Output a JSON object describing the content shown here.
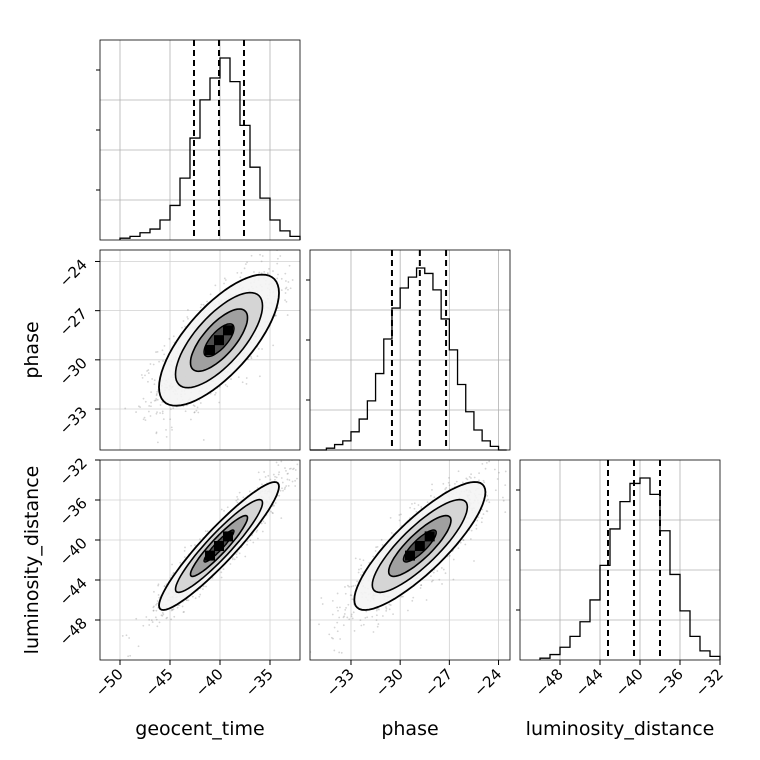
{
  "chart_data": {
    "type": "corner",
    "parameters": [
      "geocent_time",
      "phase",
      "luminosity_distance"
    ],
    "ranges": {
      "geocent_time": [
        -52,
        -32
      ],
      "phase": [
        -35.5,
        -23.3
      ],
      "luminosity_distance": [
        -52,
        -32
      ]
    },
    "ticks": {
      "geocent_time": [
        -50,
        -45,
        -40,
        -35
      ],
      "phase": [
        -33,
        -30,
        -27,
        -24
      ],
      "luminosity_distance": [
        -48,
        -44,
        -40,
        -36,
        -32
      ]
    },
    "tick_labels": {
      "geocent_time": [
        "−50",
        "−45",
        "−40",
        "−35"
      ],
      "phase": [
        "−33",
        "−30",
        "−27",
        "−24"
      ],
      "luminosity_distance": [
        "−48",
        "−44",
        "−40",
        "−36",
        "−32"
      ]
    },
    "quantiles": {
      "geocent_time": [
        -42.6,
        -40.1,
        -37.6
      ],
      "phase": [
        -30.5,
        -28.8,
        -27.2
      ],
      "luminosity_distance": [
        -43.2,
        -40.6,
        -38.0
      ]
    },
    "histograms": [
      {
        "parameter": "geocent_time",
        "edges": [
          -50,
          -49,
          -48,
          -47,
          -46,
          -45,
          -44,
          -43,
          -42,
          -41,
          -40,
          -39,
          -38,
          -37,
          -36,
          -35,
          -34,
          -33,
          -32
        ],
        "counts": [
          0.01,
          0.02,
          0.04,
          0.06,
          0.11,
          0.19,
          0.34,
          0.56,
          0.77,
          0.89,
          1.0,
          0.87,
          0.63,
          0.4,
          0.23,
          0.11,
          0.05,
          0.02
        ]
      },
      {
        "parameter": "phase",
        "edges": [
          -35.5,
          -35.0,
          -34.5,
          -34.0,
          -33.5,
          -33.0,
          -32.5,
          -32.0,
          -31.5,
          -31.0,
          -30.5,
          -30.0,
          -29.5,
          -29.0,
          -28.5,
          -28.0,
          -27.5,
          -27.0,
          -26.5,
          -26.0,
          -25.5,
          -25.0,
          -24.5,
          -24.0,
          -23.5
        ],
        "counts": [
          0.0,
          0.0,
          0.01,
          0.03,
          0.05,
          0.1,
          0.17,
          0.27,
          0.42,
          0.61,
          0.78,
          0.89,
          0.95,
          1.0,
          0.97,
          0.88,
          0.72,
          0.55,
          0.36,
          0.21,
          0.11,
          0.05,
          0.02,
          0.0
        ]
      },
      {
        "parameter": "luminosity_distance",
        "edges": [
          -50,
          -49,
          -48,
          -47,
          -46,
          -45,
          -44,
          -43,
          -42,
          -41,
          -40,
          -39,
          -38,
          -37,
          -36,
          -35,
          -34,
          -33,
          -32
        ],
        "counts": [
          0.01,
          0.03,
          0.07,
          0.13,
          0.21,
          0.33,
          0.52,
          0.72,
          0.87,
          0.97,
          1.0,
          0.91,
          0.71,
          0.47,
          0.27,
          0.13,
          0.05,
          0.02
        ]
      }
    ],
    "pairs": [
      {
        "x": "geocent_time",
        "y": "phase",
        "center": [
          -40.1,
          -28.8
        ],
        "sd": [
          3.0,
          2.0
        ],
        "rho": 0.72
      },
      {
        "x": "geocent_time",
        "y": "luminosity_distance",
        "center": [
          -40.1,
          -40.6
        ],
        "sd": [
          3.0,
          3.2
        ],
        "rho": 0.93
      },
      {
        "x": "phase",
        "y": "luminosity_distance",
        "center": [
          -28.8,
          -40.6
        ],
        "sd": [
          2.0,
          3.2
        ],
        "rho": 0.84
      }
    ],
    "grid": true
  }
}
